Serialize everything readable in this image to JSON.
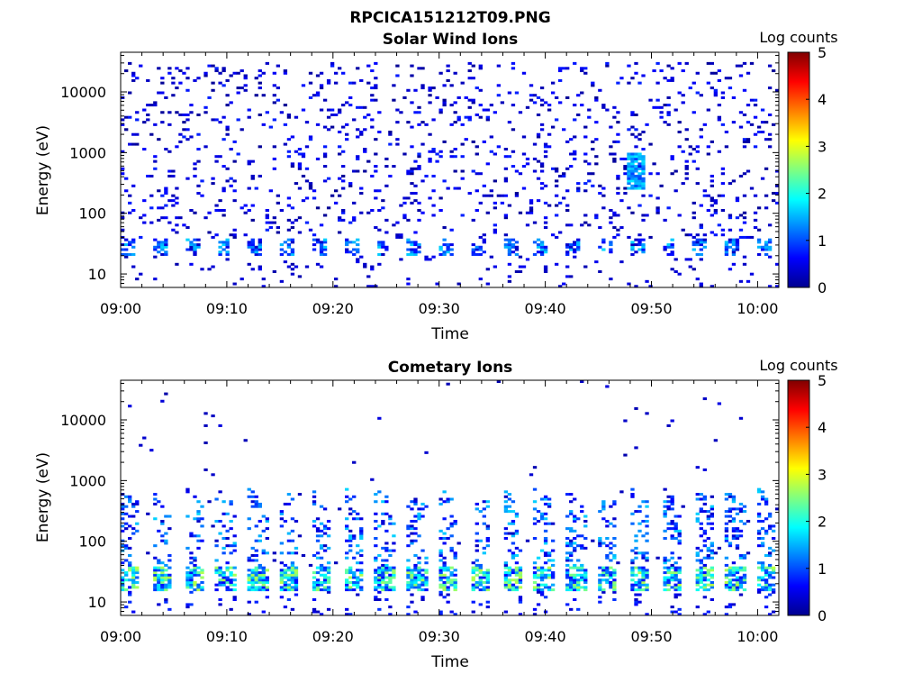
{
  "figure": {
    "title": "RPCICA151212T09.PNG",
    "colormap": "jet",
    "panels": [
      {
        "title": "Solar Wind Ions",
        "seed": 11,
        "dataset": "solar_wind",
        "colorbar_label": "Log counts"
      },
      {
        "title": "Cometary Ions",
        "seed": 23,
        "dataset": "cometary",
        "colorbar_label": "Log counts"
      }
    ]
  },
  "chart_data": [
    {
      "type": "heatmap",
      "title": "Solar Wind Ions",
      "xlabel": "Time",
      "ylabel": "Energy (eV)",
      "x_ticks": [
        "09:00",
        "09:10",
        "09:20",
        "09:30",
        "09:40",
        "09:50",
        "10:00"
      ],
      "y_ticks": [
        "10",
        "100",
        "1000",
        "10000"
      ],
      "y_scale": "log",
      "xlim": [
        "09:00",
        "10:02"
      ],
      "ylim": [
        6,
        45000
      ],
      "colorbar": {
        "label": "Log counts",
        "ticks": [
          "0",
          "1",
          "2",
          "3",
          "4",
          "5"
        ],
        "range": [
          0,
          5
        ]
      },
      "description_points": {
        "low_energy_band_eV": [
          20,
          40
        ],
        "background_log_counts": 0.5,
        "hotspot_time_min": 48.5,
        "hotspot_energy_eV": 500,
        "hotspot_log_counts": 1.8
      }
    },
    {
      "type": "heatmap",
      "title": "Cometary Ions",
      "xlabel": "Time",
      "ylabel": "Energy (eV)",
      "x_ticks": [
        "09:00",
        "09:10",
        "09:20",
        "09:30",
        "09:40",
        "09:50",
        "10:00"
      ],
      "y_ticks": [
        "10",
        "100",
        "1000",
        "10000"
      ],
      "y_scale": "log",
      "xlim": [
        "09:00",
        "10:02"
      ],
      "ylim": [
        6,
        45000
      ],
      "colorbar": {
        "label": "Log counts",
        "ticks": [
          "0",
          "1",
          "2",
          "3",
          "4",
          "5"
        ],
        "range": [
          0,
          5
        ]
      },
      "description_points": {
        "main_band_eV": [
          15,
          40
        ],
        "peak_log_counts": 2.8,
        "burst_period_min": 3.0,
        "burst_max_energy_eV": 800
      }
    }
  ]
}
